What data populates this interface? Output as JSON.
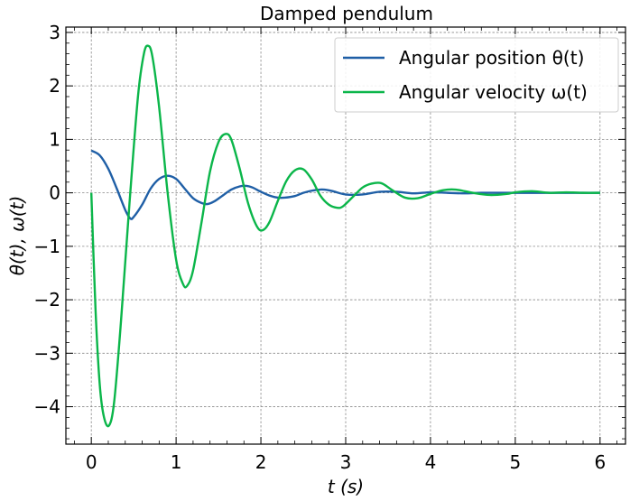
{
  "chart_data": {
    "type": "line",
    "title": "Damped pendulum",
    "xlabel": "t (s)",
    "ylabel": "θ(t),  ω(t)",
    "xlim": [
      -0.3,
      6.3
    ],
    "ylim": [
      -4.7,
      3.1
    ],
    "x_ticks": [
      0,
      1,
      2,
      3,
      4,
      5,
      6
    ],
    "y_ticks": [
      -4,
      -3,
      -2,
      -1,
      0,
      1,
      2,
      3
    ],
    "x_tick_labels": [
      "0",
      "1",
      "2",
      "3",
      "4",
      "5",
      "6"
    ],
    "y_tick_labels": [
      "−4",
      "−3",
      "−2",
      "−1",
      "0",
      "1",
      "2",
      "3"
    ],
    "grid": true,
    "legend_position": "top-right",
    "series": [
      {
        "name": "Angular position θ(t)",
        "color": "#1f5fa6",
        "x": [
          0,
          0.1,
          0.2,
          0.3,
          0.4,
          0.46,
          0.5,
          0.6,
          0.7,
          0.8,
          0.9,
          1.0,
          1.1,
          1.2,
          1.3,
          1.37,
          1.45,
          1.55,
          1.65,
          1.75,
          1.83,
          1.9,
          2.0,
          2.1,
          2.2,
          2.28,
          2.4,
          2.5,
          2.6,
          2.7,
          2.75,
          2.85,
          3.0,
          3.2,
          3.4,
          3.6,
          3.8,
          4.0,
          4.2,
          4.4,
          4.6,
          4.8,
          5.0,
          5.2,
          5.4,
          5.6,
          5.8,
          6.0
        ],
        "y": [
          0.79,
          0.7,
          0.45,
          0.08,
          -0.32,
          -0.48,
          -0.45,
          -0.22,
          0.08,
          0.26,
          0.32,
          0.26,
          0.08,
          -0.1,
          -0.19,
          -0.21,
          -0.16,
          -0.05,
          0.06,
          0.12,
          0.13,
          0.1,
          0.02,
          -0.05,
          -0.09,
          -0.09,
          -0.06,
          0.0,
          0.04,
          0.06,
          0.06,
          0.03,
          -0.03,
          -0.03,
          0.02,
          0.02,
          -0.01,
          0.01,
          0.0,
          -0.01,
          0.0,
          0.0,
          0.0,
          0.0,
          0.0,
          0.0,
          0.0,
          0.0
        ]
      },
      {
        "name": "Angular velocity ω(t)",
        "color": "#0bb64a",
        "x": [
          0,
          0.05,
          0.1,
          0.15,
          0.21,
          0.27,
          0.35,
          0.45,
          0.55,
          0.62,
          0.67,
          0.72,
          0.8,
          0.9,
          1.0,
          1.08,
          1.13,
          1.2,
          1.3,
          1.4,
          1.5,
          1.58,
          1.65,
          1.75,
          1.85,
          1.95,
          2.02,
          2.1,
          2.2,
          2.3,
          2.4,
          2.5,
          2.6,
          2.7,
          2.8,
          2.9,
          2.97,
          3.1,
          3.2,
          3.3,
          3.42,
          3.55,
          3.7,
          3.85,
          4.0,
          4.15,
          4.3,
          4.5,
          4.7,
          4.9,
          5.0,
          5.2,
          5.4,
          5.6,
          5.8,
          6.0
        ],
        "y": [
          0.0,
          -2.2,
          -3.6,
          -4.2,
          -4.35,
          -3.9,
          -2.4,
          -0.2,
          1.8,
          2.6,
          2.75,
          2.55,
          1.6,
          0.0,
          -1.25,
          -1.7,
          -1.74,
          -1.45,
          -0.55,
          0.4,
          0.95,
          1.1,
          1.0,
          0.45,
          -0.2,
          -0.62,
          -0.7,
          -0.55,
          -0.15,
          0.22,
          0.42,
          0.44,
          0.25,
          -0.05,
          -0.22,
          -0.28,
          -0.25,
          -0.05,
          0.1,
          0.17,
          0.18,
          0.05,
          -0.09,
          -0.1,
          -0.02,
          0.05,
          0.06,
          0.0,
          -0.04,
          -0.02,
          0.01,
          0.03,
          0.0,
          0.01,
          0.0,
          0.0
        ]
      }
    ]
  }
}
